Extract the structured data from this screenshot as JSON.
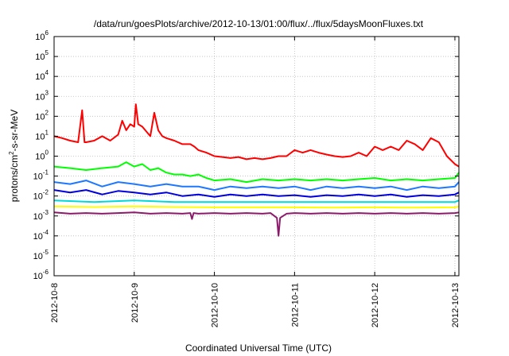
{
  "chart_data": {
    "type": "line",
    "title": "/data/run/goesPlots/archive/2012-10-13/01:00/flux/../flux/5daysMoonFluxes.txt",
    "xlabel": "Coordinated Universal Time (UTC)",
    "ylabel": "protons/cm²-s-sr-MeV",
    "ylabel_parts": {
      "base": "protons/cm",
      "sup": "2",
      "rest": "-s-sr-MeV"
    },
    "yscale": "log",
    "ylim": [
      1e-06,
      1000000.0
    ],
    "xlim": [
      0,
      5.05
    ],
    "grid": true,
    "x_ticks": [
      {
        "x": 0,
        "label": "2012-10-8"
      },
      {
        "x": 1,
        "label": "2012-10-9"
      },
      {
        "x": 2,
        "label": "2012-10-10"
      },
      {
        "x": 3,
        "label": "2012-10-11"
      },
      {
        "x": 4,
        "label": "2012-10-12"
      },
      {
        "x": 5,
        "label": "2012-10-13"
      }
    ],
    "y_ticks": [
      {
        "exp": -6,
        "base": "10",
        "sup": "-6"
      },
      {
        "exp": -5,
        "base": "10",
        "sup": "-5"
      },
      {
        "exp": -4,
        "base": "10",
        "sup": "-4"
      },
      {
        "exp": -3,
        "base": "10",
        "sup": "-3"
      },
      {
        "exp": -2,
        "base": "10",
        "sup": "-2"
      },
      {
        "exp": -1,
        "base": "10",
        "sup": "-1"
      },
      {
        "exp": 0,
        "base": "10",
        "sup": "0"
      },
      {
        "exp": 1,
        "base": "10",
        "sup": "1"
      },
      {
        "exp": 2,
        "base": "10",
        "sup": "2"
      },
      {
        "exp": 3,
        "base": "10",
        "sup": "3"
      },
      {
        "exp": 4,
        "base": "10",
        "sup": "4"
      },
      {
        "exp": 5,
        "base": "10",
        "sup": "5"
      },
      {
        "exp": 6,
        "base": "10",
        "sup": "6"
      }
    ],
    "series": [
      {
        "color": "#ff0000",
        "x": [
          0,
          0.1,
          0.2,
          0.3,
          0.35,
          0.38,
          0.4,
          0.5,
          0.6,
          0.7,
          0.8,
          0.85,
          0.9,
          0.95,
          1.0,
          1.02,
          1.05,
          1.1,
          1.2,
          1.25,
          1.3,
          1.35,
          1.4,
          1.5,
          1.6,
          1.7,
          1.75,
          1.8,
          1.9,
          2.0,
          2.1,
          2.2,
          2.3,
          2.4,
          2.5,
          2.6,
          2.7,
          2.8,
          2.9,
          3.0,
          3.1,
          3.2,
          3.3,
          3.4,
          3.5,
          3.6,
          3.7,
          3.8,
          3.9,
          4.0,
          4.1,
          4.2,
          4.3,
          4.4,
          4.5,
          4.6,
          4.7,
          4.8,
          4.9,
          5.0,
          5.05
        ],
        "y": [
          10,
          8,
          6,
          5,
          200,
          5,
          5,
          6,
          10,
          6,
          12,
          60,
          20,
          40,
          30,
          400,
          40,
          30,
          10,
          150,
          20,
          10,
          8,
          6,
          4,
          4,
          3,
          2,
          1.5,
          1,
          0.9,
          0.8,
          0.9,
          0.7,
          0.8,
          0.7,
          0.8,
          1,
          1,
          2,
          1.5,
          2,
          1.5,
          1.2,
          1,
          0.9,
          1,
          1.5,
          1,
          3,
          2,
          3,
          2,
          6,
          4,
          2,
          8,
          5,
          1,
          0.4,
          0.3
        ]
      },
      {
        "color": "#00ff00",
        "x": [
          0,
          0.2,
          0.4,
          0.6,
          0.8,
          0.9,
          1.0,
          1.1,
          1.2,
          1.3,
          1.4,
          1.5,
          1.6,
          1.7,
          1.8,
          1.9,
          2.0,
          2.2,
          2.4,
          2.6,
          2.8,
          3.0,
          3.2,
          3.4,
          3.6,
          3.8,
          4.0,
          4.2,
          4.4,
          4.6,
          4.8,
          5.0,
          5.05
        ],
        "y": [
          0.3,
          0.25,
          0.2,
          0.25,
          0.3,
          0.5,
          0.3,
          0.4,
          0.2,
          0.25,
          0.15,
          0.12,
          0.12,
          0.1,
          0.12,
          0.08,
          0.06,
          0.07,
          0.05,
          0.07,
          0.06,
          0.07,
          0.06,
          0.07,
          0.06,
          0.07,
          0.08,
          0.06,
          0.07,
          0.06,
          0.07,
          0.08,
          0.15
        ]
      },
      {
        "color": "#1e78ff",
        "x": [
          0,
          0.2,
          0.4,
          0.6,
          0.8,
          1.0,
          1.2,
          1.4,
          1.6,
          1.8,
          2.0,
          2.2,
          2.4,
          2.6,
          2.8,
          3.0,
          3.2,
          3.4,
          3.6,
          3.8,
          4.0,
          4.2,
          4.4,
          4.6,
          4.8,
          5.0,
          5.05
        ],
        "y": [
          0.05,
          0.04,
          0.06,
          0.03,
          0.05,
          0.04,
          0.03,
          0.04,
          0.03,
          0.03,
          0.02,
          0.03,
          0.025,
          0.03,
          0.025,
          0.03,
          0.02,
          0.03,
          0.025,
          0.03,
          0.025,
          0.03,
          0.02,
          0.03,
          0.025,
          0.03,
          0.05
        ]
      },
      {
        "color": "#0000dd",
        "x": [
          0,
          0.2,
          0.4,
          0.6,
          0.8,
          1.0,
          1.2,
          1.4,
          1.6,
          1.8,
          2.0,
          2.2,
          2.4,
          2.6,
          2.8,
          3.0,
          3.2,
          3.4,
          3.6,
          3.8,
          4.0,
          4.2,
          4.4,
          4.6,
          4.8,
          5.0,
          5.05
        ],
        "y": [
          0.02,
          0.015,
          0.02,
          0.012,
          0.018,
          0.015,
          0.012,
          0.015,
          0.01,
          0.012,
          0.009,
          0.012,
          0.01,
          0.012,
          0.01,
          0.011,
          0.009,
          0.011,
          0.01,
          0.012,
          0.01,
          0.012,
          0.009,
          0.011,
          0.01,
          0.012,
          0.015
        ]
      },
      {
        "color": "#00d8d8",
        "x": [
          0,
          0.5,
          1.0,
          1.5,
          2.0,
          2.5,
          3.0,
          3.5,
          4.0,
          4.5,
          5.0,
          5.05
        ],
        "y": [
          0.006,
          0.005,
          0.006,
          0.005,
          0.005,
          0.005,
          0.005,
          0.005,
          0.005,
          0.005,
          0.005,
          0.006
        ]
      },
      {
        "color": "#ffff00",
        "x": [
          0,
          0.5,
          1.0,
          1.5,
          2.0,
          2.5,
          3.0,
          3.5,
          4.0,
          4.5,
          5.0,
          5.05
        ],
        "y": [
          0.003,
          0.0028,
          0.003,
          0.0028,
          0.0027,
          0.0027,
          0.0027,
          0.0026,
          0.0027,
          0.0026,
          0.0027,
          0.003
        ]
      },
      {
        "color": "#8b1a6b",
        "x": [
          0,
          0.2,
          0.4,
          0.6,
          0.8,
          1.0,
          1.2,
          1.4,
          1.6,
          1.7,
          1.72,
          1.74,
          1.8,
          2.0,
          2.2,
          2.4,
          2.6,
          2.7,
          2.78,
          2.8,
          2.82,
          2.9,
          3.0,
          3.2,
          3.4,
          3.6,
          3.8,
          4.0,
          4.2,
          4.4,
          4.6,
          4.8,
          5.0,
          5.05
        ],
        "y": [
          0.0015,
          0.0013,
          0.0014,
          0.0013,
          0.0014,
          0.0015,
          0.0013,
          0.0014,
          0.0013,
          0.0014,
          0.0007,
          0.0014,
          0.0013,
          0.0014,
          0.0013,
          0.0014,
          0.0013,
          0.0014,
          0.0008,
          0.0001,
          0.0008,
          0.0013,
          0.0014,
          0.0013,
          0.0014,
          0.0013,
          0.0014,
          0.0013,
          0.0014,
          0.0013,
          0.0014,
          0.0013,
          0.0014,
          0.0015
        ]
      }
    ]
  }
}
